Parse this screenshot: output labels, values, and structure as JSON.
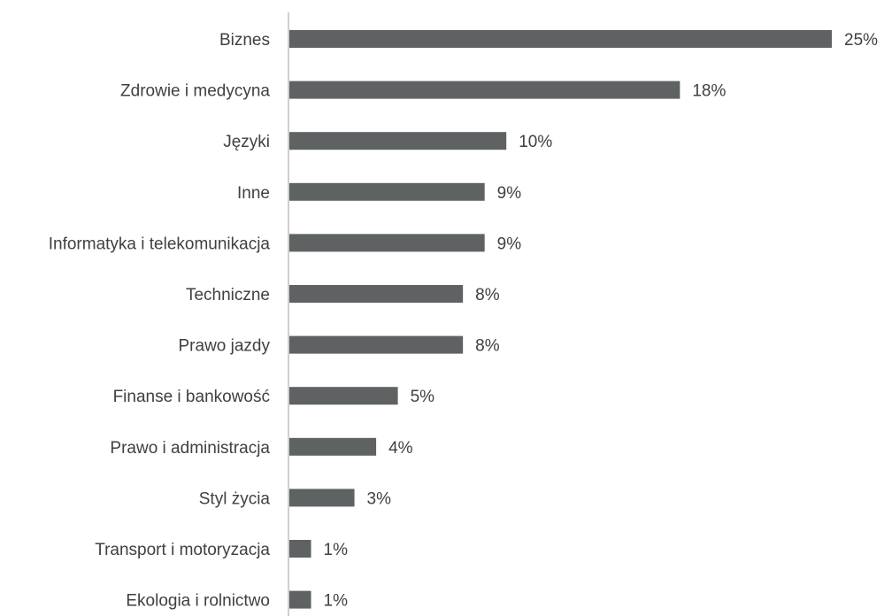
{
  "chart_data": {
    "type": "bar",
    "orientation": "horizontal",
    "categories": [
      "Biznes",
      "Zdrowie i medycyna",
      "Języki",
      "Inne",
      "Informatyka i telekomunikacja",
      "Techniczne",
      "Prawo jazdy",
      "Finanse i bankowość",
      "Prawo i administracja",
      "Styl życia",
      "Transport i motoryzacja",
      "Ekologia i rolnictwo"
    ],
    "values": [
      25,
      18,
      10,
      9,
      9,
      8,
      8,
      5,
      4,
      3,
      1,
      1
    ],
    "value_labels": [
      "25%",
      "18%",
      "10%",
      "9%",
      "9%",
      "8%",
      "8%",
      "5%",
      "4%",
      "3%",
      "1%",
      "1%"
    ],
    "unit": "%",
    "title": "",
    "xlabel": "",
    "ylabel": "",
    "xlim": [
      0,
      25
    ],
    "grid": false,
    "legend": "none",
    "bar_color": "#5f6262",
    "text_color": "#404040",
    "axis_color": "#bfbfbf"
  }
}
